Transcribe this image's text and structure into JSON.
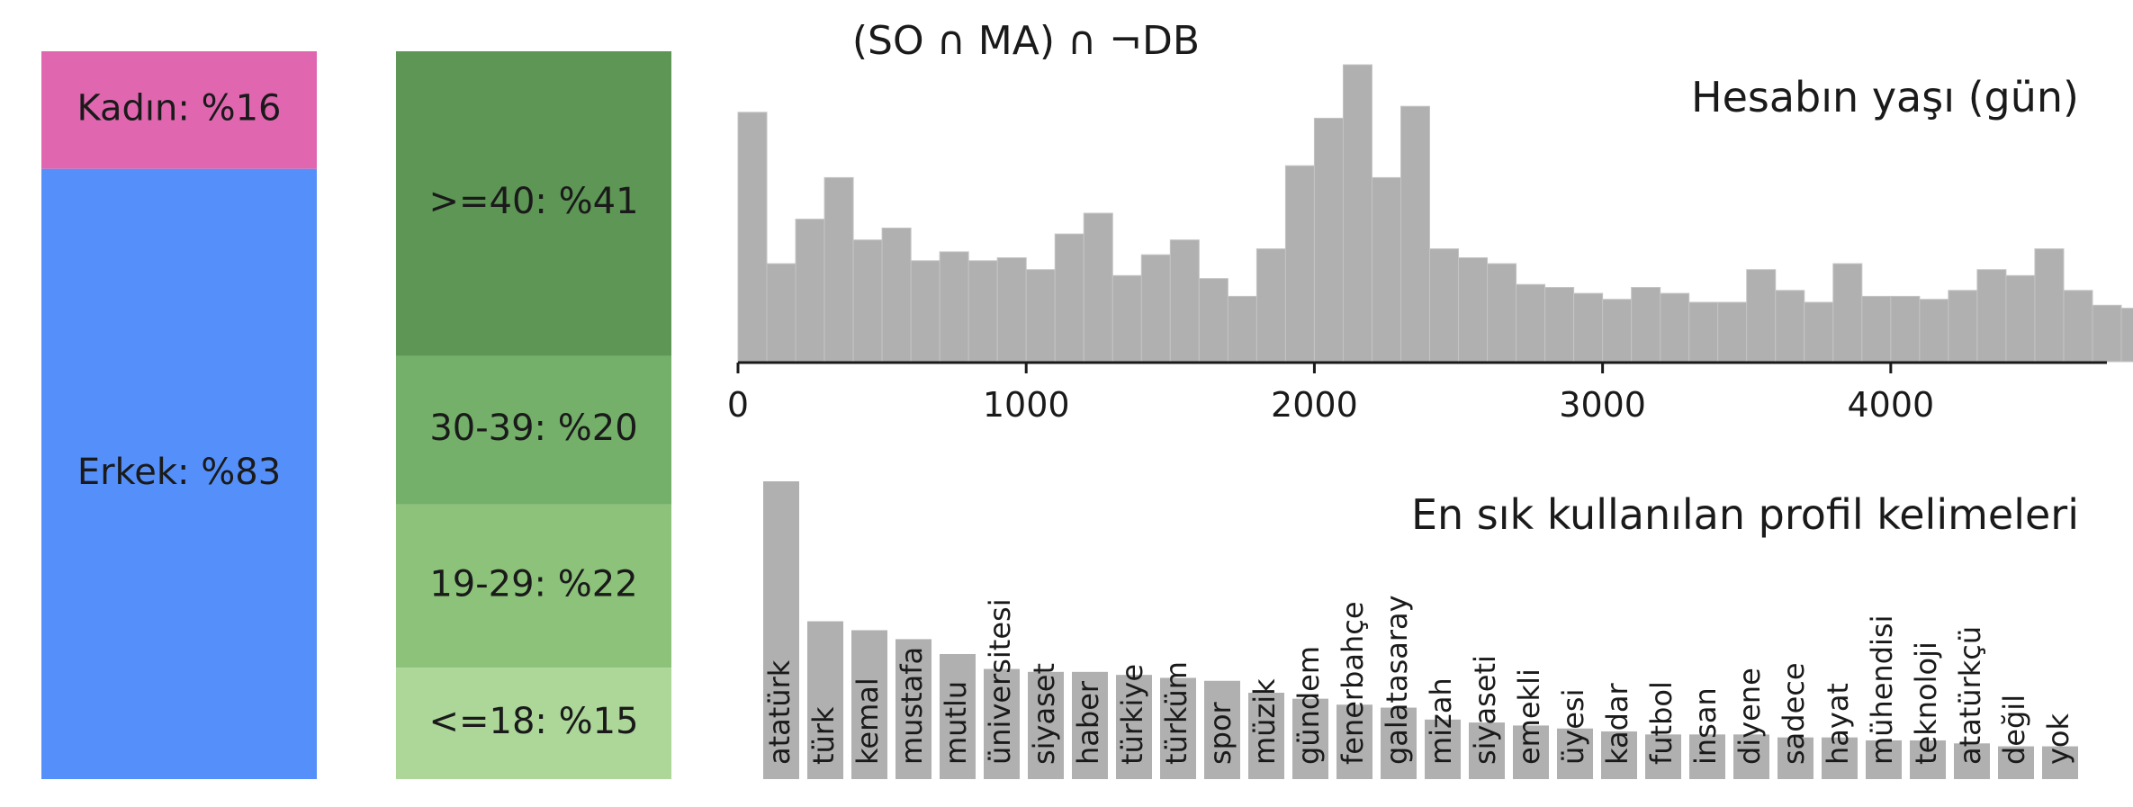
{
  "title": "(SO ∩ MA) ∩ ¬DB",
  "chart_data": [
    {
      "type": "bar",
      "subtype": "stacked-100",
      "segments": [
        {
          "label": "Kadın: %16",
          "value": 16,
          "color": "#e066b0"
        },
        {
          "label": "Erkek: %83",
          "value": 83,
          "color": "#5590fa"
        }
      ]
    },
    {
      "type": "bar",
      "subtype": "stacked-100",
      "segments": [
        {
          "label": ">=40: %41",
          "value": 41,
          "color": "#5d9655"
        },
        {
          "label": "30-39: %20",
          "value": 20,
          "color": "#74b06a"
        },
        {
          "label": "19-29: %22",
          "value": 22,
          "color": "#8cc27a"
        },
        {
          "label": "<=18: %15",
          "value": 15,
          "color": "#acd799"
        }
      ]
    },
    {
      "type": "bar",
      "subtype": "histogram",
      "title": "Hesabın yaşı (gün)",
      "xlim": [
        0,
        4750
      ],
      "bin_width": 100,
      "xticks": [
        0,
        1000,
        2000,
        3000,
        4000
      ],
      "xtick_labels": [
        "0",
        "1000",
        "2000",
        "3000",
        "4000"
      ],
      "values": [
        84,
        33,
        48,
        62,
        41,
        45,
        34,
        37,
        34,
        35,
        31,
        43,
        50,
        29,
        36,
        41,
        28,
        22,
        38,
        66,
        82,
        100,
        62,
        86,
        38,
        35,
        33,
        26,
        25,
        23,
        21,
        25,
        23,
        20,
        20,
        31,
        24,
        20,
        33,
        22,
        22,
        21,
        24,
        31,
        29,
        38,
        24,
        19,
        18,
        17
      ],
      "color": "#b0b0b0",
      "grid": false
    },
    {
      "type": "bar",
      "title": "En sık kullanılan profil kelimeleri",
      "categories": [
        "atatürk",
        "türk",
        "kemal",
        "mustafa",
        "mutlu",
        "üniversitesi",
        "siyaset",
        "haber",
        "türkiye",
        "türküm",
        "spor",
        "müzik",
        "gündem",
        "fenerbahçe",
        "galatasaray",
        "mizah",
        "siyaseti",
        "emekli",
        "üyesi",
        "kadar",
        "futbol",
        "insan",
        "diyene",
        "sadece",
        "hayat",
        "mühendisi",
        "teknoloji",
        "atatürkçü",
        "değil",
        "yok"
      ],
      "values": [
        100,
        53,
        50,
        47,
        42,
        37,
        36,
        36,
        35,
        34,
        33,
        29,
        27,
        25,
        24,
        20,
        19,
        18,
        17,
        16,
        15,
        15,
        15,
        14,
        14,
        13,
        13,
        12,
        11,
        11
      ],
      "color": "#b0b0b0",
      "grid": false
    }
  ]
}
